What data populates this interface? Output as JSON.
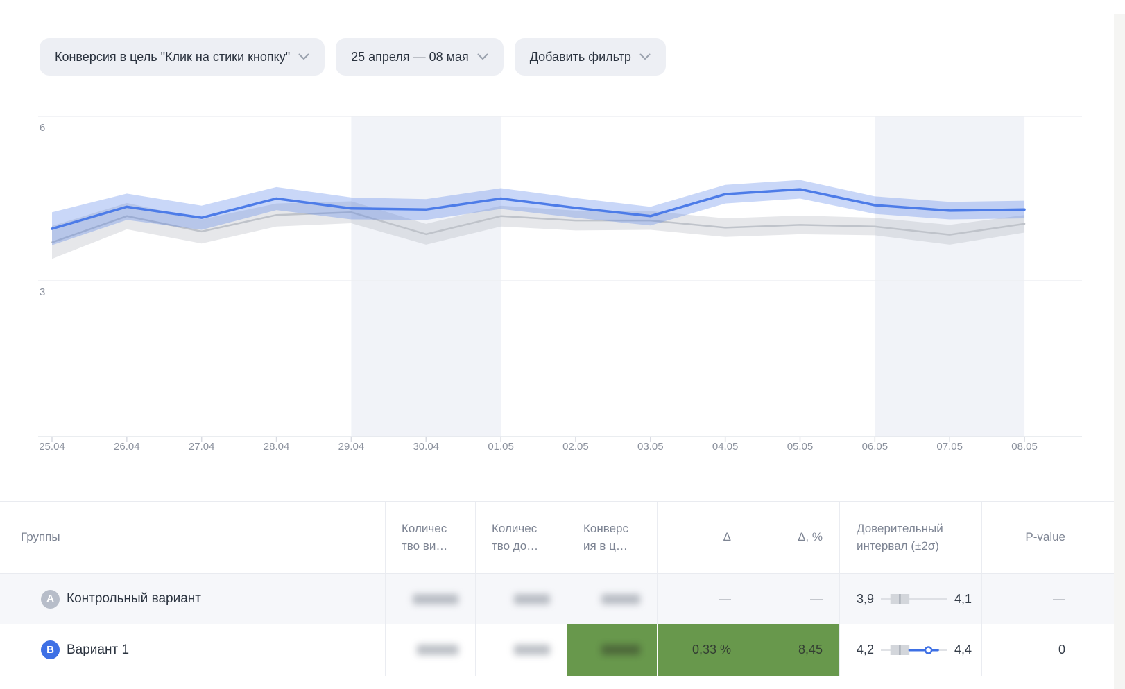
{
  "colors": {
    "accent_blue": "#3e70e5",
    "chart_blue": "#4d7ce8",
    "chart_blue_band": "rgba(77,124,232,0.30)",
    "chart_gray": "#bfc3ca",
    "chart_gray_band": "rgba(176,181,190,0.32)",
    "weekend_band": "#f1f3f8",
    "gridline": "#edeff3",
    "axis_line": "#e4e7ec",
    "tick": "#d8dbe2",
    "green_highlight": "#68984c",
    "badge_a_bg": "#b7bdc9",
    "badge_b_bg": "#3e70e5",
    "pill_bg": "#edeff4"
  },
  "filters": {
    "goal": "Конверсия в цель \"Клик на стики кнопку\"",
    "date_range": "25 апреля — 08 мая",
    "add_filter": "Добавить фильтр"
  },
  "chart_data": {
    "type": "line",
    "x": [
      "25.04",
      "26.04",
      "27.04",
      "28.04",
      "29.04",
      "30.04",
      "01.05",
      "02.05",
      "03.05",
      "04.05",
      "05.05",
      "06.05",
      "07.05",
      "08.05"
    ],
    "y_ticks": [
      6,
      3
    ],
    "ylabel": "",
    "xlabel": "",
    "grid": "horizontal",
    "legend": "none",
    "series": [
      {
        "name": "Контрольный вариант (A)",
        "color": "#bfc3ca",
        "band_color": "rgba(176,181,190,0.32)",
        "values": [
          3.7,
          4.18,
          3.9,
          4.2,
          4.25,
          3.85,
          4.18,
          4.1,
          4.1,
          3.97,
          4.02,
          3.99,
          3.84,
          4.04
        ],
        "band": [
          0.3,
          0.24,
          0.22,
          0.21,
          0.2,
          0.19,
          0.19,
          0.18,
          0.17,
          0.17,
          0.17,
          0.16,
          0.18,
          0.16
        ]
      },
      {
        "name": "Вариант 1 (B)",
        "color": "#4d7ce8",
        "band_color": "rgba(77,124,232,0.30)",
        "values": [
          3.95,
          4.35,
          4.15,
          4.5,
          4.32,
          4.3,
          4.5,
          4.33,
          4.18,
          4.58,
          4.67,
          4.38,
          4.28,
          4.3
        ],
        "band": [
          0.3,
          0.24,
          0.22,
          0.21,
          0.2,
          0.19,
          0.19,
          0.18,
          0.17,
          0.17,
          0.17,
          0.16,
          0.16,
          0.16
        ]
      }
    ],
    "weekend_bands": [
      [
        "29.04",
        "01.05"
      ],
      [
        "06.05",
        "08.05"
      ]
    ]
  },
  "table": {
    "columns": [
      "Группы",
      "Количес\nтво ви…",
      "Количес\nтво до…",
      "Конверс\nия в ц…",
      "Δ",
      "Δ, %",
      "Доверительный\nинтервал (±2σ)",
      "P-value"
    ],
    "rows": [
      {
        "badge": "A",
        "name": "Контрольный вариант",
        "visits_masked": true,
        "conversions_masked": true,
        "rate_masked": true,
        "delta": "—",
        "delta_pct": "—",
        "ci_low": "3,9",
        "ci_high": "4,1",
        "p_value": "—"
      },
      {
        "badge": "B",
        "name": "Вариант 1",
        "visits_masked": true,
        "conversions_masked": true,
        "rate_masked": true,
        "delta": "0,33 %",
        "delta_pct": "8,45",
        "ci_low": "4,2",
        "ci_high": "4,4",
        "p_value": "0",
        "significant": true
      }
    ]
  }
}
